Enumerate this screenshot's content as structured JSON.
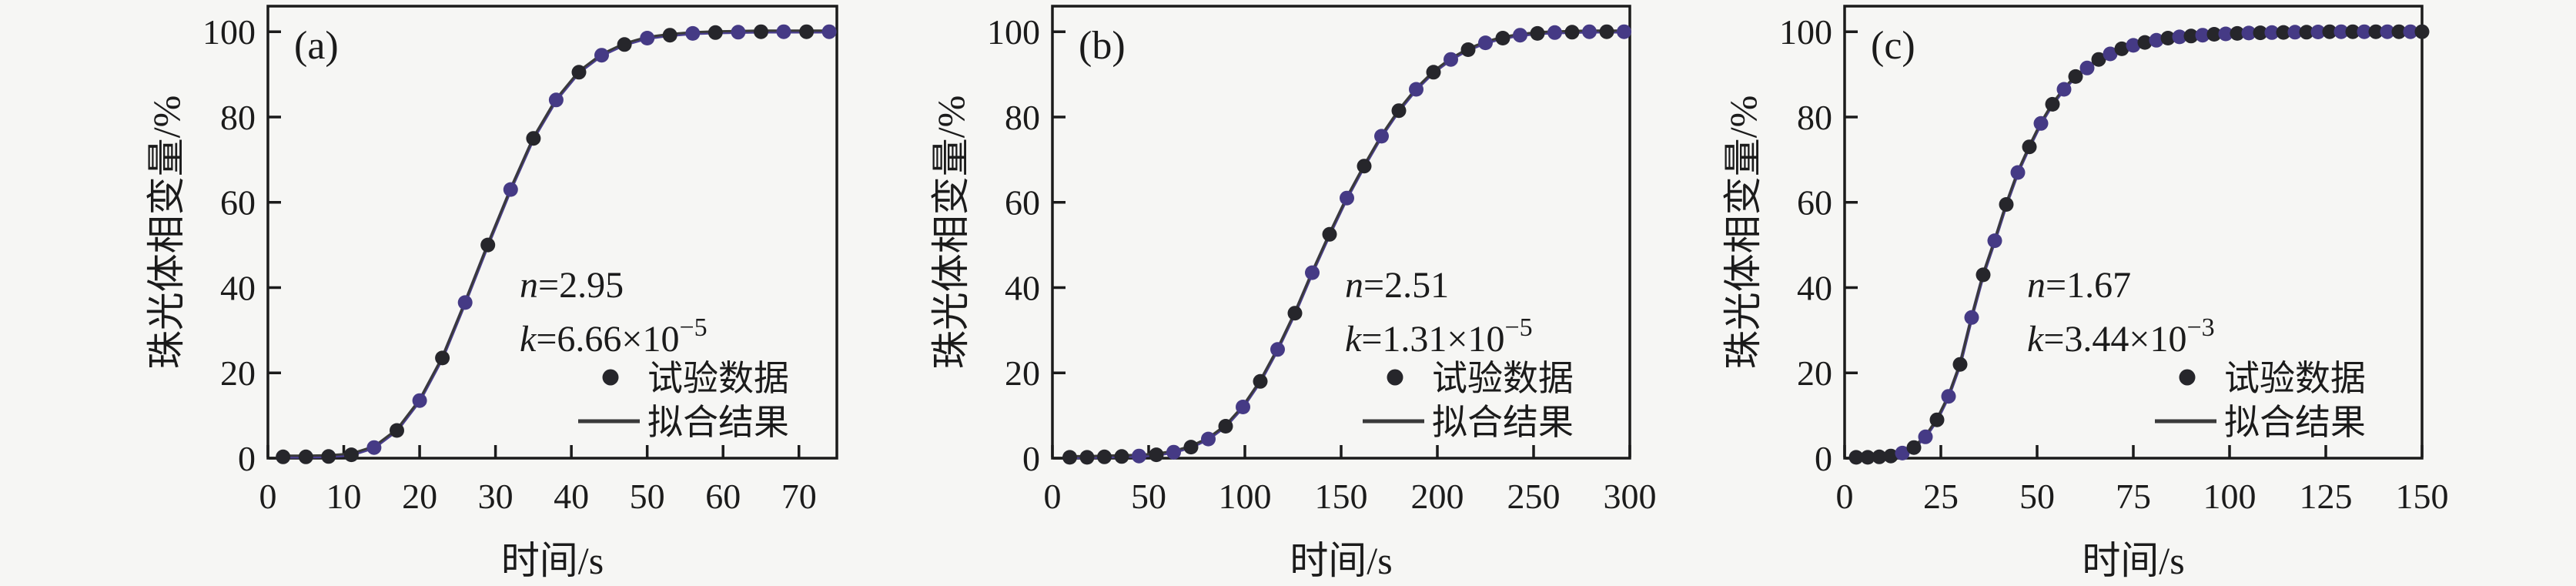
{
  "figure": {
    "background": "#f6f6f4",
    "axis_color": "#1b1b1b",
    "fit_line_color": "#3a3a3a",
    "fit_line_under_color": "#4a3f8f",
    "marker_color": "#26262b",
    "marker_alt_color": "#453a85",
    "xlabel": "时间/s",
    "ylabel": "珠光体相变量/%",
    "legend": {
      "data_label": "试验数据",
      "fit_label": "拟合结果"
    }
  },
  "chart_data": [
    {
      "type": "line",
      "panel_tag": "(a)",
      "xlabel": "时间/s",
      "ylabel": "珠光体相变量/%",
      "xlim": [
        0,
        75
      ],
      "ylim": [
        0,
        106
      ],
      "xticks": [
        0,
        10,
        20,
        30,
        40,
        50,
        60,
        70
      ],
      "yticks": [
        0,
        20,
        40,
        60,
        80,
        100
      ],
      "grid": false,
      "legend_position": "lower-right-inside",
      "fit_params": {
        "n": "2.95",
        "k_mantissa": "6.66",
        "k_times": "×10",
        "k_exponent": "−5"
      },
      "series": [
        {
          "name": "试验数据",
          "kind": "scatter",
          "x": [
            2,
            5,
            8,
            11,
            14,
            17,
            20,
            23,
            26,
            29,
            32,
            35,
            38,
            41,
            44,
            47,
            50,
            53,
            56,
            59,
            62,
            65,
            68,
            71,
            74
          ],
          "y": [
            0.3,
            0.3,
            0.4,
            0.8,
            2.5,
            6.5,
            13.5,
            23.5,
            36.5,
            50,
            63,
            75,
            84,
            90.5,
            94.5,
            97,
            98.5,
            99.2,
            99.6,
            99.8,
            99.9,
            100,
            100,
            100,
            100
          ]
        },
        {
          "name": "拟合结果",
          "kind": "line",
          "follows": "试验数据"
        }
      ]
    },
    {
      "type": "line",
      "panel_tag": "(b)",
      "xlabel": "时间/s",
      "ylabel": "珠光体相变量/%",
      "xlim": [
        0,
        300
      ],
      "ylim": [
        0,
        106
      ],
      "xticks": [
        0,
        50,
        100,
        150,
        200,
        250,
        300
      ],
      "yticks": [
        0,
        20,
        40,
        60,
        80,
        100
      ],
      "grid": false,
      "legend_position": "lower-right-inside",
      "fit_params": {
        "n": "2.51",
        "k_mantissa": "1.31",
        "k_times": "×10",
        "k_exponent": "−5"
      },
      "series": [
        {
          "name": "试验数据",
          "kind": "scatter",
          "x": [
            9,
            18,
            27,
            36,
            45,
            54,
            63,
            72,
            81,
            90,
            99,
            108,
            117,
            126,
            135,
            144,
            153,
            162,
            171,
            180,
            189,
            198,
            207,
            216,
            225,
            234,
            243,
            252,
            261,
            270,
            279,
            288,
            297
          ],
          "y": [
            0.2,
            0.2,
            0.3,
            0.4,
            0.5,
            0.8,
            1.4,
            2.6,
            4.5,
            7.5,
            12,
            18,
            25.5,
            34,
            43.5,
            52.5,
            61,
            68.5,
            75.5,
            81.5,
            86.5,
            90.5,
            93.5,
            95.8,
            97.4,
            98.5,
            99.2,
            99.6,
            99.8,
            99.9,
            100,
            100,
            100
          ]
        },
        {
          "name": "拟合结果",
          "kind": "line",
          "follows": "试验数据"
        }
      ]
    },
    {
      "type": "line",
      "panel_tag": "(c)",
      "xlabel": "时间/s",
      "ylabel": "珠光体相变量/%",
      "xlim": [
        0,
        150
      ],
      "ylim": [
        0,
        106
      ],
      "xticks": [
        0,
        25,
        50,
        75,
        100,
        125,
        150
      ],
      "yticks": [
        0,
        20,
        40,
        60,
        80,
        100
      ],
      "grid": false,
      "legend_position": "lower-right-inside",
      "fit_params": {
        "n": "1.67",
        "k_mantissa": "3.44",
        "k_times": "×10",
        "k_exponent": "−3"
      },
      "series": [
        {
          "name": "试验数据",
          "kind": "scatter",
          "x": [
            3,
            6,
            9,
            12,
            15,
            18,
            21,
            24,
            27,
            30,
            33,
            36,
            39,
            42,
            45,
            48,
            51,
            54,
            57,
            60,
            63,
            66,
            69,
            72,
            75,
            78,
            81,
            84,
            87,
            90,
            93,
            96,
            99,
            102,
            105,
            108,
            111,
            114,
            117,
            120,
            123,
            126,
            129,
            132,
            135,
            138,
            141,
            144,
            147,
            150
          ],
          "y": [
            0.2,
            0.2,
            0.3,
            0.5,
            1.2,
            2.5,
            5,
            9,
            14.5,
            22,
            33,
            43,
            51,
            59.5,
            67,
            73,
            78.5,
            83,
            86.5,
            89.5,
            91.5,
            93.5,
            94.8,
            96,
            96.8,
            97.5,
            98,
            98.5,
            98.8,
            99,
            99.2,
            99.4,
            99.5,
            99.6,
            99.7,
            99.75,
            99.8,
            99.85,
            99.9,
            99.9,
            99.95,
            100,
            100,
            100,
            100,
            100,
            100,
            100,
            100,
            100
          ]
        },
        {
          "name": "拟合结果",
          "kind": "line",
          "follows": "试验数据"
        }
      ]
    }
  ]
}
